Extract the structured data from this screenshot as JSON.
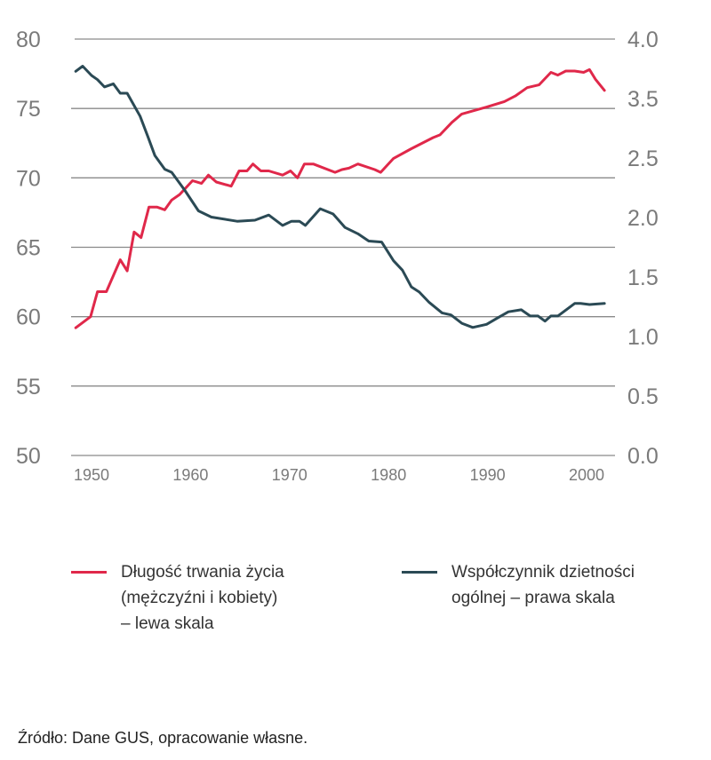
{
  "chart_data": {
    "type": "line",
    "title": "",
    "xlabel": "",
    "x_ticks": [
      "1950",
      "1960",
      "1970",
      "1980",
      "1990",
      "2000"
    ],
    "xlim": [
      1948.4,
      2002.5
    ],
    "y_left": {
      "ticks": [
        "80",
        "75",
        "70",
        "65",
        "60",
        "55",
        "50"
      ],
      "ylim": [
        50,
        80
      ]
    },
    "y_right": {
      "ticks": [
        "4.0",
        "3.5",
        "2.5",
        "2.0",
        "1.5",
        "1.0",
        "0.5",
        "0.0"
      ],
      "ylim": [
        0,
        4.0
      ]
    },
    "grid": true,
    "legend_position": "bottom",
    "colors": {
      "life": "#e0284a",
      "fertility": "#2b4a55",
      "grid": "#8a8a8a"
    },
    "series": [
      {
        "name": "Długość trwania życia\n(mężczyźni i kobiety)\n– lewa skala",
        "axis": "left",
        "x": [
          1948.4,
          1949.9,
          1950.6,
          1951.5,
          1952.9,
          1953.6,
          1954.3,
          1955.0,
          1955.8,
          1956.6,
          1957.4,
          1958.1,
          1958.9,
          1960.2,
          1961.1,
          1961.8,
          1962.6,
          1964.1,
          1964.9,
          1965.7,
          1966.3,
          1967.1,
          1967.9,
          1969.3,
          1970.1,
          1970.8,
          1971.5,
          1972.4,
          1974.6,
          1975.3,
          1976.0,
          1976.9,
          1978.6,
          1979.2,
          1980.5,
          1982.3,
          1984.5,
          1985.2,
          1986.4,
          1987.4,
          1989.9,
          1991.7,
          1992.8,
          1994.0,
          1995.2,
          1996.4,
          1997.1,
          1997.9,
          1998.8,
          1999.7,
          2000.3,
          2000.9,
          2001.8
        ],
        "values": [
          59.2,
          60.0,
          61.8,
          61.8,
          64.1,
          63.3,
          66.1,
          65.7,
          67.9,
          67.9,
          67.7,
          68.4,
          68.8,
          69.8,
          69.6,
          70.2,
          69.7,
          69.4,
          70.5,
          70.5,
          71.0,
          70.5,
          70.5,
          70.2,
          70.5,
          70.0,
          71.0,
          71.0,
          70.4,
          70.6,
          70.7,
          71.0,
          70.6,
          70.4,
          71.4,
          72.1,
          72.9,
          73.1,
          74.0,
          74.6,
          75.1,
          75.5,
          75.9,
          76.5,
          76.7,
          77.6,
          77.4,
          77.7,
          77.7,
          77.6,
          77.8,
          77.1,
          76.3
        ]
      },
      {
        "name": "Współczynnik dzietności\nogólnej – prawa skala",
        "axis": "right",
        "x": [
          1948.4,
          1949.1,
          1950.0,
          1950.6,
          1951.3,
          1952.2,
          1952.9,
          1953.6,
          1954.9,
          1955.7,
          1956.4,
          1957.4,
          1958.1,
          1959.4,
          1960.8,
          1962.1,
          1964.7,
          1966.5,
          1967.9,
          1969.3,
          1970.2,
          1971.0,
          1971.6,
          1973.1,
          1974.4,
          1975.6,
          1976.9,
          1978.0,
          1979.3,
          1980.5,
          1981.4,
          1982.3,
          1983.1,
          1984.1,
          1985.4,
          1986.3,
          1987.4,
          1988.5,
          1989.9,
          1991.0,
          1992.1,
          1993.4,
          1994.3,
          1995.1,
          1995.8,
          1996.4,
          1997.1,
          1998.8,
          1999.4,
          2000.3,
          2001.8
        ],
        "values": [
          3.69,
          3.74,
          3.65,
          3.61,
          3.54,
          3.57,
          3.48,
          3.48,
          3.26,
          3.06,
          2.88,
          2.75,
          2.72,
          2.55,
          2.35,
          2.29,
          2.25,
          2.26,
          2.31,
          2.21,
          2.25,
          2.25,
          2.21,
          2.37,
          2.32,
          2.19,
          2.13,
          2.06,
          2.05,
          1.87,
          1.78,
          1.62,
          1.57,
          1.47,
          1.37,
          1.35,
          1.27,
          1.23,
          1.26,
          1.32,
          1.38,
          1.4,
          1.34,
          1.34,
          1.29,
          1.34,
          1.34,
          1.46,
          1.46,
          1.45,
          1.46
        ]
      }
    ]
  },
  "legend": {
    "life": "Długość trwania życia\n(mężczyźni i kobiety)\n– lewa skala",
    "fertility": "Współczynnik dzietności\nogólnej – prawa skala"
  },
  "source": "Źródło: Dane GUS, opracowanie własne."
}
